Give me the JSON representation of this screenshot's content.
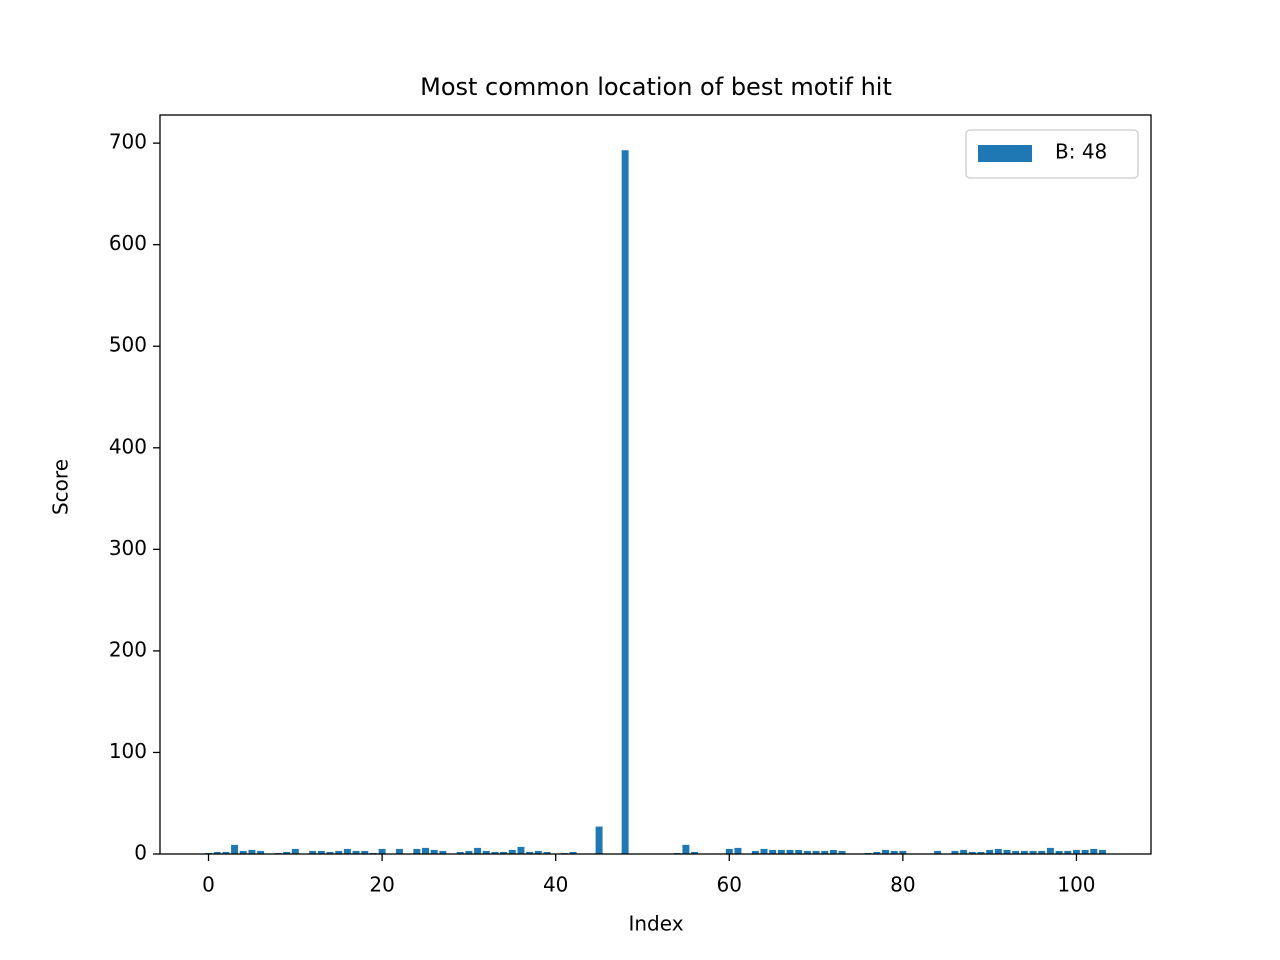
{
  "chart_data": {
    "type": "bar",
    "title": "Most common location of best motif hit",
    "xlabel": "Index",
    "ylabel": "Score",
    "x": [
      0,
      1,
      2,
      3,
      4,
      5,
      6,
      7,
      8,
      9,
      10,
      11,
      12,
      13,
      14,
      15,
      16,
      17,
      18,
      19,
      20,
      21,
      22,
      23,
      24,
      25,
      26,
      27,
      28,
      29,
      30,
      31,
      32,
      33,
      34,
      35,
      36,
      37,
      38,
      39,
      40,
      41,
      42,
      43,
      44,
      45,
      46,
      47,
      48,
      49,
      50,
      51,
      52,
      53,
      54,
      55,
      56,
      57,
      58,
      59,
      60,
      61,
      62,
      63,
      64,
      65,
      66,
      67,
      68,
      69,
      70,
      71,
      72,
      73,
      74,
      75,
      76,
      77,
      78,
      79,
      80,
      81,
      82,
      83,
      84,
      85,
      86,
      87,
      88,
      89,
      90,
      91,
      92,
      93,
      94,
      95,
      96,
      97,
      98,
      99,
      100,
      101,
      102,
      103
    ],
    "series": [
      {
        "name": "B: 48",
        "color": "#1f77b4",
        "values": [
          1,
          2,
          2,
          9,
          3,
          4,
          3,
          0,
          1,
          2,
          5,
          0,
          3,
          3,
          2,
          3,
          5,
          3,
          3,
          1,
          5,
          0,
          5,
          0,
          5,
          6,
          4,
          3,
          0,
          2,
          3,
          6,
          3,
          2,
          2,
          4,
          7,
          2,
          3,
          2,
          0,
          1,
          2,
          0,
          0,
          27,
          0,
          0,
          693,
          0,
          0,
          0,
          0,
          0,
          1,
          9,
          2,
          0,
          0,
          0,
          5,
          6,
          0,
          3,
          5,
          4,
          4,
          4,
          4,
          3,
          3,
          3,
          4,
          3,
          0,
          0,
          1,
          2,
          4,
          3,
          3,
          0,
          0,
          0,
          3,
          0,
          3,
          4,
          2,
          2,
          4,
          5,
          4,
          3,
          3,
          3,
          3,
          6,
          3,
          3,
          4,
          4,
          5,
          4
        ]
      }
    ],
    "xlim": [
      -5.59,
      108.59
    ],
    "ylim": [
      0,
      727.7
    ],
    "xticks": [
      0,
      20,
      40,
      60,
      80,
      100
    ],
    "yticks": [
      0,
      100,
      200,
      300,
      400,
      500,
      600,
      700
    ],
    "legend": "upper right"
  }
}
